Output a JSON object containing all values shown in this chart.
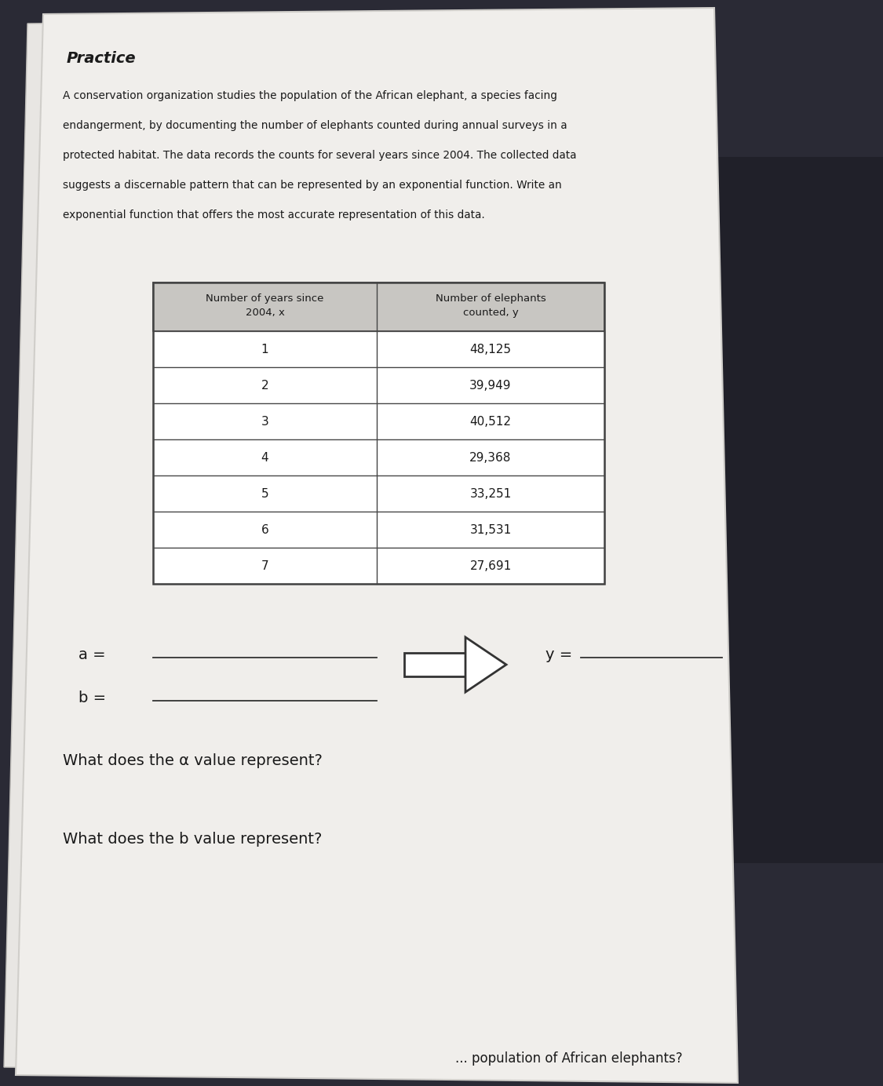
{
  "title": "Practice",
  "paragraph_lines": [
    "A conservation organization studies the population of the African elephant, a species facing",
    "endangerment, by documenting the number of elephants counted during annual surveys in a",
    "protected habitat. The data records the counts for several years since 2004. The collected data",
    "suggests a discernable pattern that can be represented by an exponential function. Write an",
    "exponential function that offers the most accurate representation of this data."
  ],
  "col1_header_line1": "Number of years since",
  "col1_header_line2": "2004, x",
  "col2_header_line1": "Number of elephants",
  "col2_header_line2": "counted, y",
  "table_data": [
    [
      "1",
      "48,125"
    ],
    [
      "2",
      "39,949"
    ],
    [
      "3",
      "40,512"
    ],
    [
      "4",
      "29,368"
    ],
    [
      "5",
      "33,251"
    ],
    [
      "6",
      "31,531"
    ],
    [
      "7",
      "27,691"
    ]
  ],
  "label_a": "a =",
  "label_b": "b =",
  "label_y": "y =",
  "question1": "What does the α value represent?",
  "question2": "What does the b value represent?",
  "question3": "population of African elephants?",
  "bg_dark": "#2a2a35",
  "bg_keyboard": "#1a1a22",
  "paper_color": "#f0eeeb",
  "paper_edge": "#d0ceca",
  "header_bg": "#c8c6c2",
  "text_color": "#1a1a1a",
  "table_border_color": "#444444",
  "line_color": "#333333",
  "shadow_color": "#888880"
}
